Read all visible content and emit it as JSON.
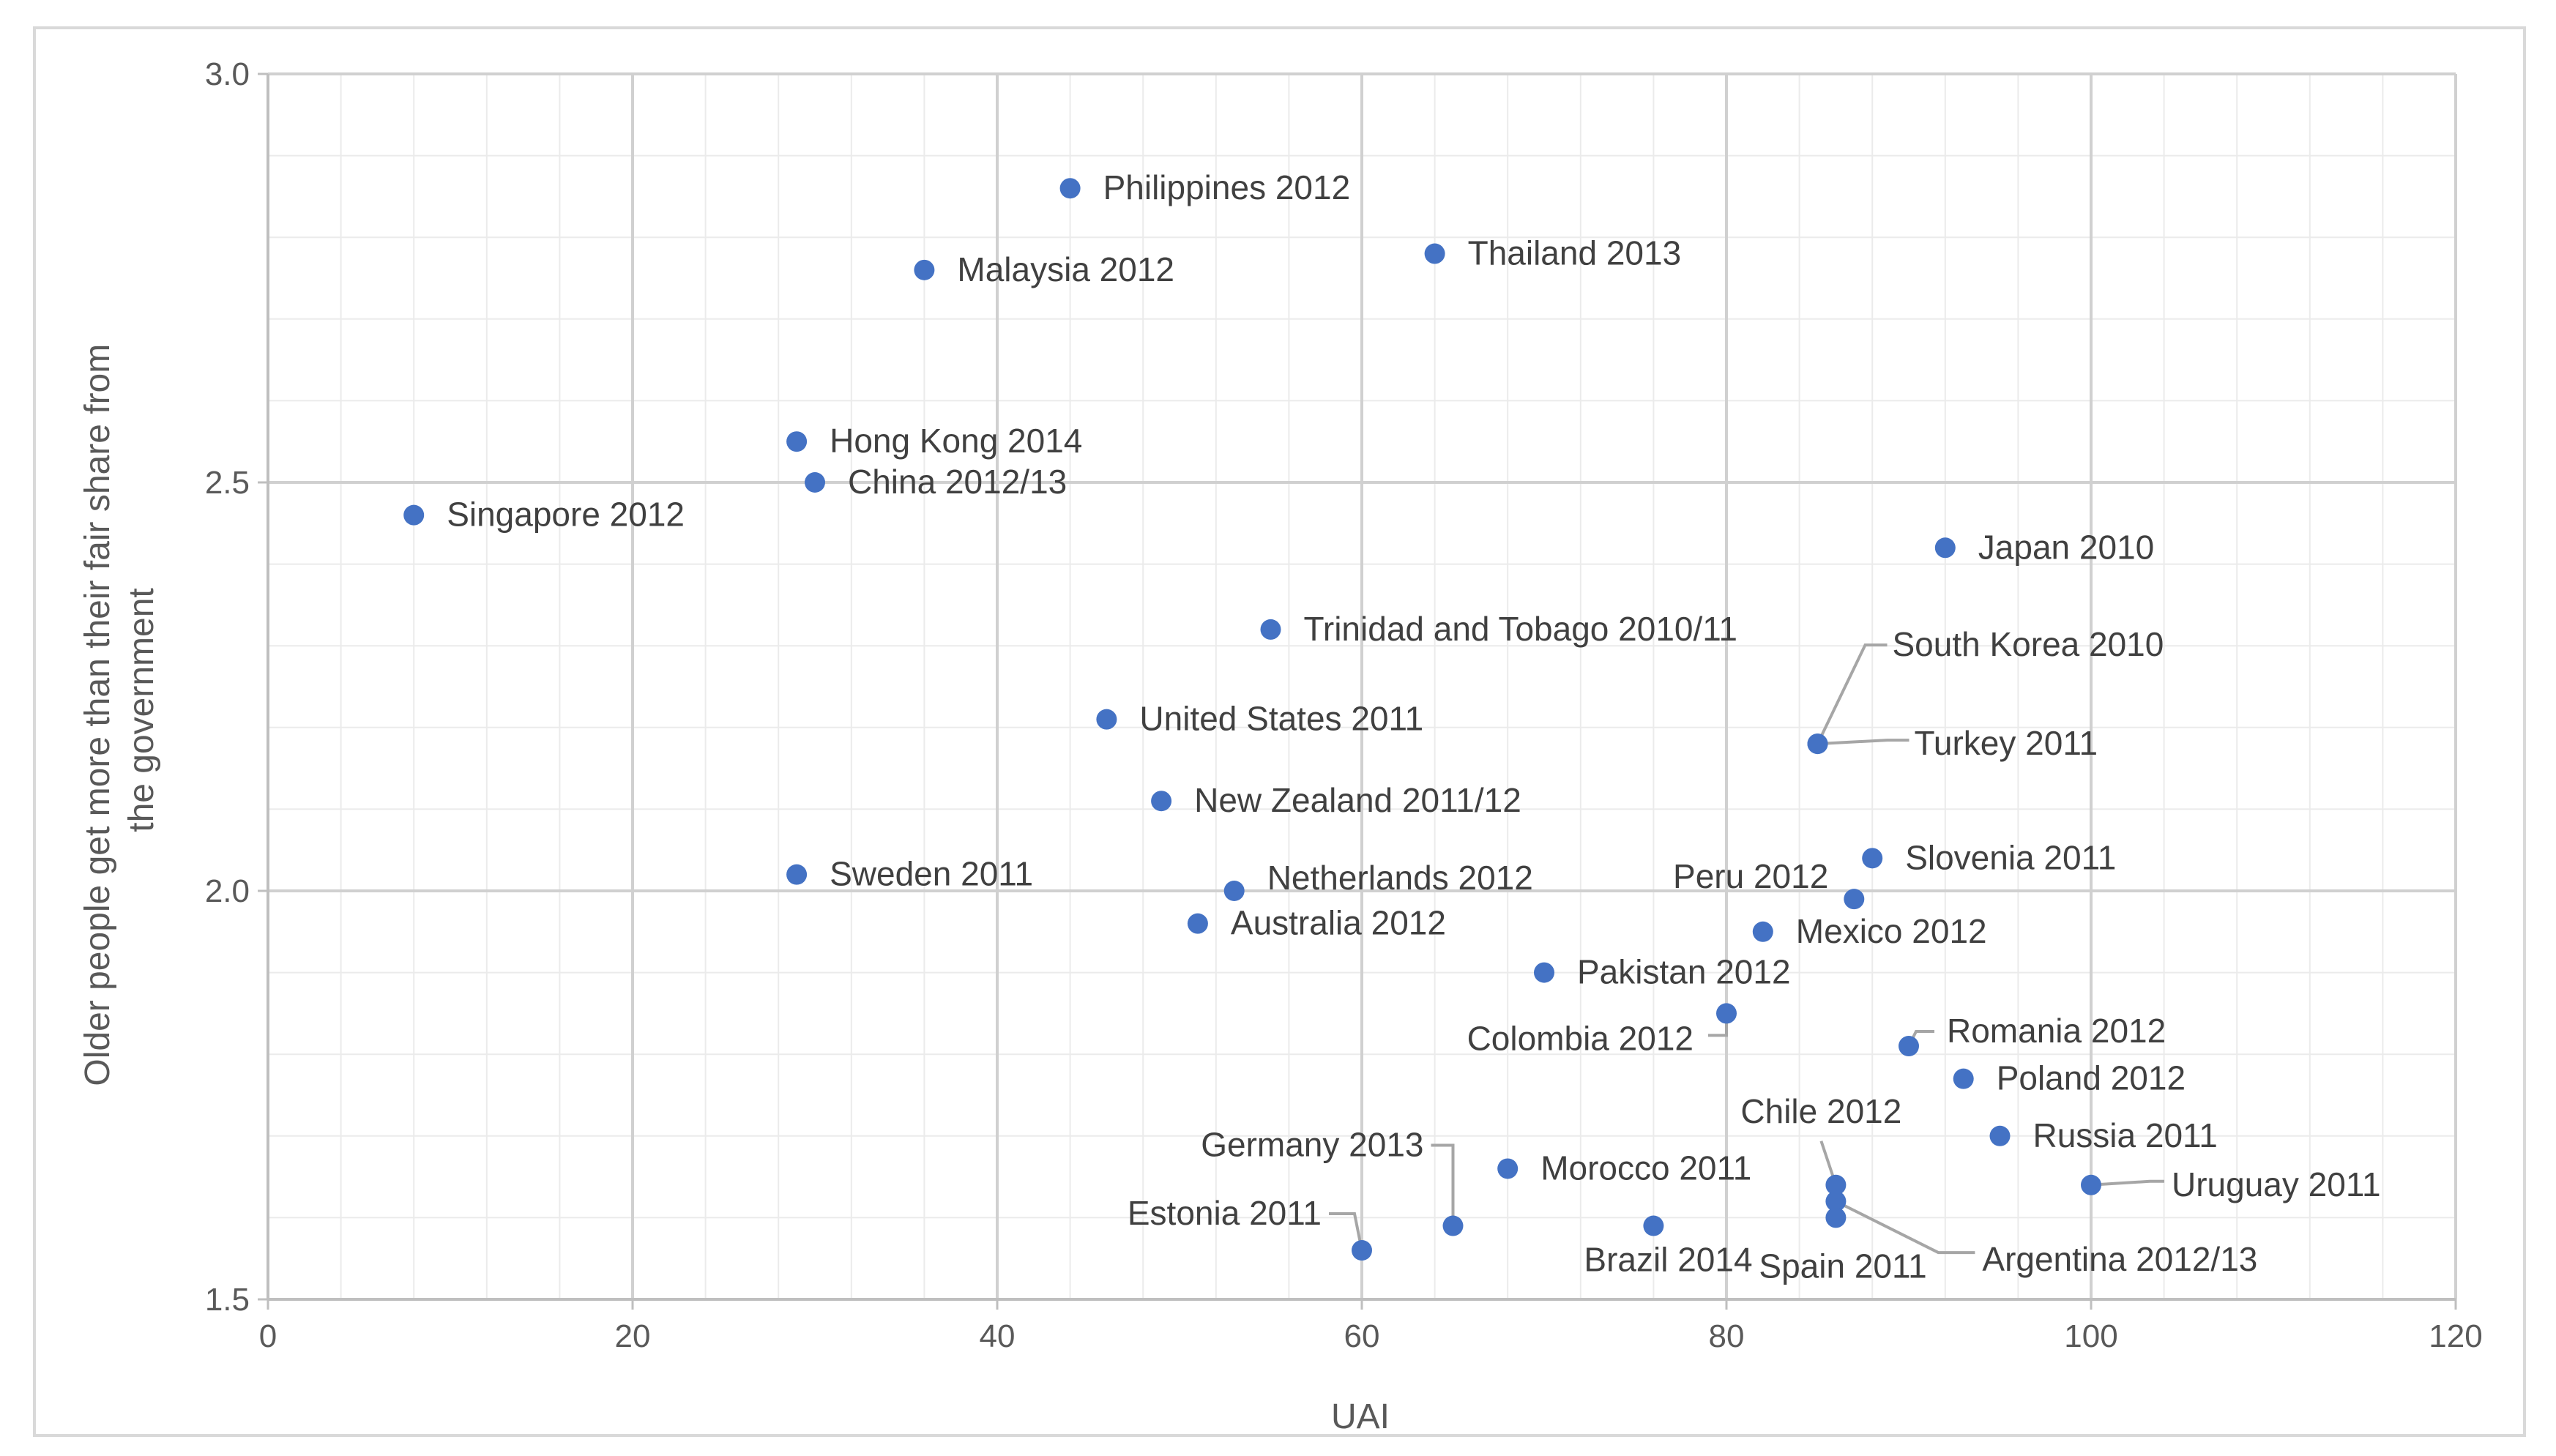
{
  "chart_data": {
    "type": "scatter",
    "title": "",
    "xlabel": "UAI",
    "ylabel": "Older people get more than their fair share from the government",
    "xlim": [
      0,
      120
    ],
    "ylim": [
      1.5,
      3.0
    ],
    "xticks": [
      0,
      20,
      40,
      60,
      80,
      100,
      120
    ],
    "yticks": [
      "1.5",
      "2.0",
      "2.5",
      "3.0"
    ],
    "grid": true,
    "legend": "none",
    "marker_color": "#4472c4",
    "points": [
      {
        "label": "Philippines 2012",
        "x": 44,
        "y": 2.86
      },
      {
        "label": "Thailand 2013",
        "x": 64,
        "y": 2.78
      },
      {
        "label": "Malaysia 2012",
        "x": 36,
        "y": 2.76
      },
      {
        "label": "Hong Kong 2014",
        "x": 29,
        "y": 2.55
      },
      {
        "label": "China 2012/13",
        "x": 30,
        "y": 2.5
      },
      {
        "label": "Singapore 2012",
        "x": 8,
        "y": 2.46
      },
      {
        "label": "Japan 2010",
        "x": 92,
        "y": 2.42
      },
      {
        "label": "Trinidad and Tobago 2010/11",
        "x": 55,
        "y": 2.32
      },
      {
        "label": "United States 2011",
        "x": 46,
        "y": 2.21
      },
      {
        "label": "South Korea 2010",
        "x": 85,
        "y": 2.18
      },
      {
        "label": "Turkey 2011",
        "x": 85,
        "y": 2.18
      },
      {
        "label": "New Zealand 2011/12",
        "x": 49,
        "y": 2.11
      },
      {
        "label": "Slovenia 2011",
        "x": 88,
        "y": 2.04
      },
      {
        "label": "Sweden 2011",
        "x": 29,
        "y": 2.02
      },
      {
        "label": "Netherlands 2012",
        "x": 53,
        "y": 2.0
      },
      {
        "label": "Peru 2012",
        "x": 87,
        "y": 1.99
      },
      {
        "label": "Australia 2012",
        "x": 51,
        "y": 1.96
      },
      {
        "label": "Mexico 2012",
        "x": 82,
        "y": 1.95
      },
      {
        "label": "Pakistan 2012",
        "x": 70,
        "y": 1.9
      },
      {
        "label": "Colombia 2012",
        "x": 80,
        "y": 1.85
      },
      {
        "label": "Romania 2012",
        "x": 90,
        "y": 1.81
      },
      {
        "label": "Poland 2012",
        "x": 93,
        "y": 1.77
      },
      {
        "label": "Russia 2011",
        "x": 95,
        "y": 1.7
      },
      {
        "label": "Chile 2012",
        "x": 86,
        "y": 1.64
      },
      {
        "label": "Morocco 2011",
        "x": 68,
        "y": 1.66
      },
      {
        "label": "Uruguay 2011",
        "x": 100,
        "y": 1.64
      },
      {
        "label": "Argentina 2012/13",
        "x": 86,
        "y": 1.62
      },
      {
        "label": "Spain 2011",
        "x": 86,
        "y": 1.6
      },
      {
        "label": "Germany 2013",
        "x": 65,
        "y": 1.59
      },
      {
        "label": "Brazil 2014",
        "x": 76,
        "y": 1.59
      },
      {
        "label": "Estonia 2011",
        "x": 60,
        "y": 1.56
      }
    ]
  }
}
